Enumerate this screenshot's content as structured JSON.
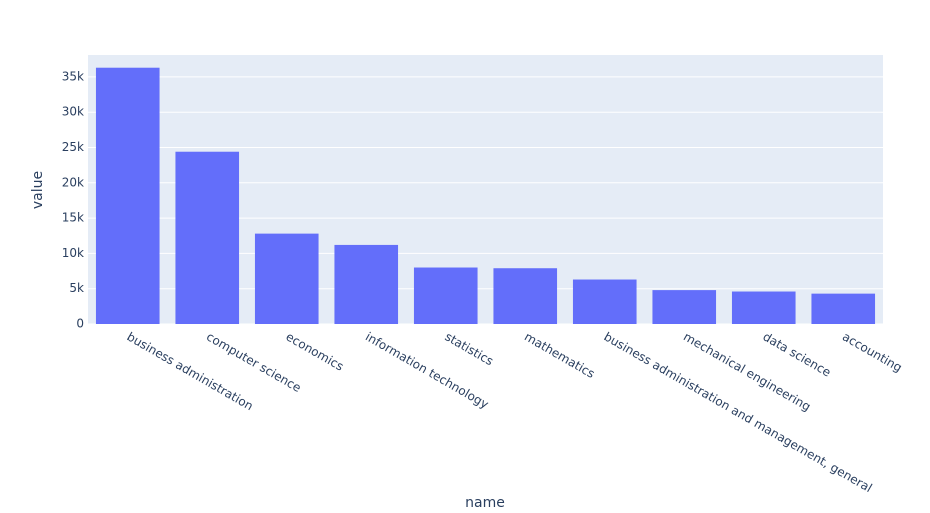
{
  "chart_data": {
    "type": "bar",
    "x_label": "name",
    "y_label": "value",
    "categories": [
      "business administration",
      "computer science",
      "economics",
      "information technology",
      "statistics",
      "mathematics",
      "business administration and management, general",
      "mechanical engineering",
      "data science",
      "accounting"
    ],
    "values": [
      36300,
      24400,
      12800,
      11200,
      8000,
      7900,
      6300,
      4800,
      4600,
      4300
    ],
    "color": "#636efa",
    "ylim": [
      0,
      38100
    ],
    "yticks": [
      0,
      {
        "value": 5000,
        "label": "5k"
      },
      {
        "value": 10000,
        "label": "10k"
      },
      {
        "value": 15000,
        "label": "15k"
      },
      {
        "value": 20000,
        "label": "20k"
      },
      {
        "value": 25000,
        "label": "25k"
      },
      {
        "value": 30000,
        "label": "30k"
      },
      {
        "value": 35000,
        "label": "35k"
      }
    ],
    "grid": true
  }
}
